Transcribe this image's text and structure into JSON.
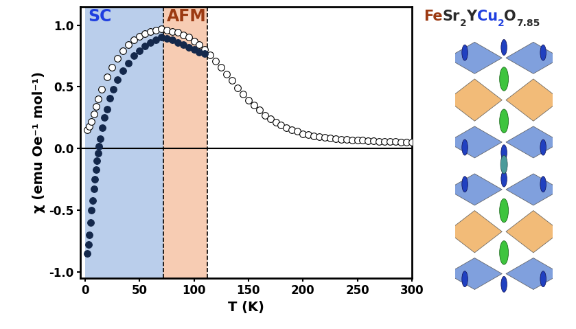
{
  "chart_data": {
    "type": "scatter",
    "x_label": "T (K)",
    "y_label": "χ (emu Oe⁻¹ mol⁻¹)",
    "xlim": [
      -4,
      300
    ],
    "xticks": [
      0,
      50,
      100,
      150,
      200,
      250,
      300
    ],
    "ylim": [
      -1.05,
      1.15
    ],
    "yticks": [
      {
        "value": -1.0,
        "label": "-1.0"
      },
      {
        "value": -0.5,
        "label": "-0.5"
      },
      {
        "value": 0.0,
        "label": "0.0"
      },
      {
        "value": 0.5,
        "label": "0.5"
      },
      {
        "value": 1.0,
        "label": "1.0"
      }
    ],
    "grid": false,
    "hline": 0,
    "regions": [
      {
        "label": "SC",
        "from": 0,
        "to": 72,
        "color": "#aec6e8",
        "label_color": "#1f3fe0"
      },
      {
        "label": "AFM",
        "from": 72,
        "to": 112,
        "color": "#f6c3a6",
        "label_color": "#9c3a12"
      }
    ],
    "formula": [
      {
        "text": "Fe",
        "color": "#9c3a12"
      },
      {
        "text": "Sr",
        "color": "#2a2a2a"
      },
      {
        "text": "2",
        "color": "#2a2a2a"
      },
      {
        "text": "Y",
        "color": "#2a2a2a"
      },
      {
        "text": "Cu",
        "color": "#1f3fe0"
      },
      {
        "text": "2",
        "color": "#1f3fe0"
      },
      {
        "text": "O",
        "color": "#2a2a2a"
      },
      {
        "text": "7.85",
        "color": "#2a2a2a"
      }
    ],
    "series": [
      {
        "color": "#000000",
        "marker": "hollow",
        "x": [
          2,
          4,
          6,
          8,
          10,
          12,
          15,
          20,
          25,
          30,
          35,
          40,
          45,
          50,
          55,
          60,
          65,
          70,
          75,
          80,
          85,
          90,
          95,
          100,
          105,
          110,
          115,
          120,
          125,
          130,
          135,
          140,
          145,
          150,
          155,
          160,
          165,
          170,
          175,
          180,
          185,
          190,
          195,
          200,
          205,
          210,
          215,
          220,
          225,
          230,
          235,
          240,
          245,
          250,
          255,
          260,
          265,
          270,
          275,
          280,
          285,
          290,
          295,
          300
        ],
        "values": [
          0.15,
          0.18,
          0.22,
          0.28,
          0.34,
          0.4,
          0.48,
          0.58,
          0.66,
          0.73,
          0.79,
          0.84,
          0.88,
          0.91,
          0.93,
          0.95,
          0.96,
          0.97,
          0.96,
          0.95,
          0.94,
          0.92,
          0.9,
          0.87,
          0.84,
          0.8,
          0.76,
          0.71,
          0.66,
          0.6,
          0.55,
          0.49,
          0.44,
          0.39,
          0.35,
          0.31,
          0.27,
          0.24,
          0.21,
          0.19,
          0.17,
          0.15,
          0.14,
          0.12,
          0.11,
          0.1,
          0.095,
          0.09,
          0.085,
          0.08,
          0.075,
          0.072,
          0.07,
          0.067,
          0.065,
          0.062,
          0.06,
          0.058,
          0.056,
          0.055,
          0.054,
          0.052,
          0.051,
          0.05
        ]
      },
      {
        "color": "#14284b",
        "marker": "circle",
        "x": [
          2,
          3,
          4,
          5,
          6,
          7,
          8,
          9,
          10,
          11,
          12,
          13,
          14,
          16,
          18,
          20,
          23,
          26,
          30,
          35,
          40,
          45,
          50,
          55,
          60,
          65,
          70,
          75,
          80,
          85,
          90,
          95,
          100,
          105,
          110
        ],
        "values": [
          -0.85,
          -0.78,
          -0.7,
          -0.6,
          -0.5,
          -0.42,
          -0.33,
          -0.25,
          -0.17,
          -0.1,
          -0.04,
          0.02,
          0.08,
          0.17,
          0.25,
          0.32,
          0.41,
          0.48,
          0.56,
          0.63,
          0.69,
          0.75,
          0.79,
          0.83,
          0.86,
          0.88,
          0.9,
          0.89,
          0.88,
          0.86,
          0.84,
          0.82,
          0.8,
          0.78,
          0.77
        ]
      }
    ]
  }
}
